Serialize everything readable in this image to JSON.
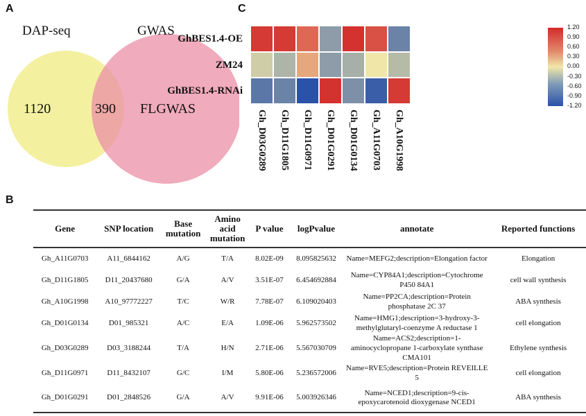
{
  "panels": {
    "a": "A",
    "b": "B",
    "c": "C"
  },
  "venn": {
    "set1": {
      "label": "DAP-seq",
      "only": "1120",
      "color": "#f3f0a0"
    },
    "set2": {
      "label": "GWAS",
      "only": "FLGWAS",
      "color": "#eb8fa6"
    },
    "overlap": "390",
    "overlap_color": "#cfa2c8"
  },
  "chart_data": {
    "type": "heatmap",
    "rows": [
      "GhBES1.4-OE",
      "ZM24",
      "GhBES1.4-RNAi"
    ],
    "columns": [
      "Gh_D03G0289",
      "Gh_D11G1805",
      "Gh_D11G0971",
      "Gh_D01G0291",
      "Gh_D01G0134",
      "Gh_A11G0703",
      "Gh_A10G1998"
    ],
    "values": [
      [
        1.1,
        1.1,
        0.8,
        -0.6,
        1.15,
        0.95,
        -0.8
      ],
      [
        -0.2,
        -0.4,
        0.4,
        -0.6,
        -0.45,
        0.0,
        -0.35
      ],
      [
        -0.9,
        -0.8,
        -1.2,
        1.15,
        -0.7,
        -1.1,
        1.1
      ]
    ],
    "colorbar": {
      "range": [
        -1.2,
        1.2
      ],
      "ticks": [
        "1.20",
        "0.90",
        "0.60",
        "0.30",
        "0.00",
        "-0.30",
        "-0.60",
        "-0.90",
        "-1.20"
      ],
      "colors": [
        "#2a52a8",
        "#f0e6a8",
        "#d32a2a"
      ]
    }
  },
  "table": {
    "headers": [
      "Gene",
      "SNP location",
      "Base mutation",
      "Amino acid mutation",
      "P value",
      "logPvalue",
      "annotate",
      "Reported functions"
    ],
    "rows": [
      [
        "Gh_A11G0703",
        "A11_6844162",
        "A/G",
        "T/A",
        "8.02E-09",
        "8.095825632",
        "Name=MEFG2;description=Elongation factor",
        "Elongation"
      ],
      [
        "Gh_D11G1805",
        "D11_20437680",
        "G/A",
        "A/V",
        "3.51E-07",
        "6.454692884",
        "Name=CYP84A1;description=Cytochrome P450 84A1",
        "cell wall synthesis"
      ],
      [
        "Gh_A10G1998",
        "A10_97772227",
        "T/C",
        "W/R",
        "7.78E-07",
        "6.109020403",
        "Name=PP2CA;description=Protein phosphatase 2C 37",
        "ABA synthesis"
      ],
      [
        "Gh_D01G0134",
        "D01_985321",
        "A/C",
        "E/A",
        "1.09E-06",
        "5.962573502",
        "Name=HMG1;description=3-hydroxy-3-methylglutaryl-coenzyme A reductase 1",
        "cell elongation"
      ],
      [
        "Gh_D03G0289",
        "D03_3188244",
        "T/A",
        "H/N",
        "2.71E-06",
        "5.567030709",
        "Name=ACS2;description=1-aminocyclopropane 1-carboxylate synthase CMA101",
        "Ethylene synthesis"
      ],
      [
        "Gh_D11G0971",
        "D11_8432107",
        "G/C",
        "I/M",
        "5.80E-06",
        "5.236572006",
        "Name=RVE5;description=Protein REVEILLE 5",
        "cell elongation"
      ],
      [
        "Gh_D01G0291",
        "D01_2848526",
        "G/A",
        "A/V",
        "9.91E-06",
        "5.003926346",
        "Name=NCED1;description=9-cis-epoxycarotenoid dioxygenase NCED1",
        "ABA synthesis"
      ]
    ]
  }
}
